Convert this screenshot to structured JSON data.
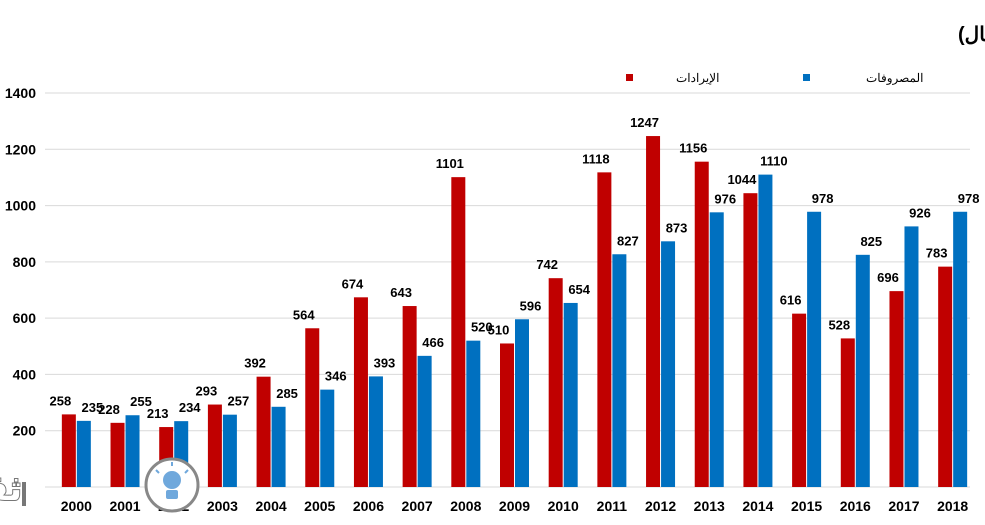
{
  "chart_data": {
    "type": "bar",
    "title": "الإيرادات والمصروفات الفعلية للميزانية السعودية (مليار ريال)",
    "categories": [
      "2000",
      "2001",
      "2002",
      "2003",
      "2004",
      "2005",
      "2006",
      "2007",
      "2008",
      "2009",
      "2010",
      "2011",
      "2012",
      "2013",
      "2014",
      "2015",
      "2016",
      "2017",
      "2018"
    ],
    "series": [
      {
        "name": "الإيرادات",
        "color": "#c00000",
        "values": [
          258,
          228,
          213,
          293,
          392,
          564,
          674,
          643,
          1101,
          510,
          742,
          1118,
          1247,
          1156,
          1044,
          616,
          528,
          696,
          783
        ]
      },
      {
        "name": "المصروفات",
        "color": "#0070c0",
        "values": [
          235,
          255,
          234,
          257,
          285,
          346,
          393,
          466,
          520,
          596,
          654,
          827,
          873,
          976,
          1110,
          978,
          825,
          926,
          978
        ]
      }
    ],
    "yticks": [
      200,
      400,
      600,
      800,
      1000,
      1200,
      1400
    ],
    "ylim": [
      0,
      1400
    ],
    "grid": true,
    "legend_position": "top"
  },
  "watermark": {
    "text": "ثقفني",
    "icon": "lightbulb-icon"
  }
}
